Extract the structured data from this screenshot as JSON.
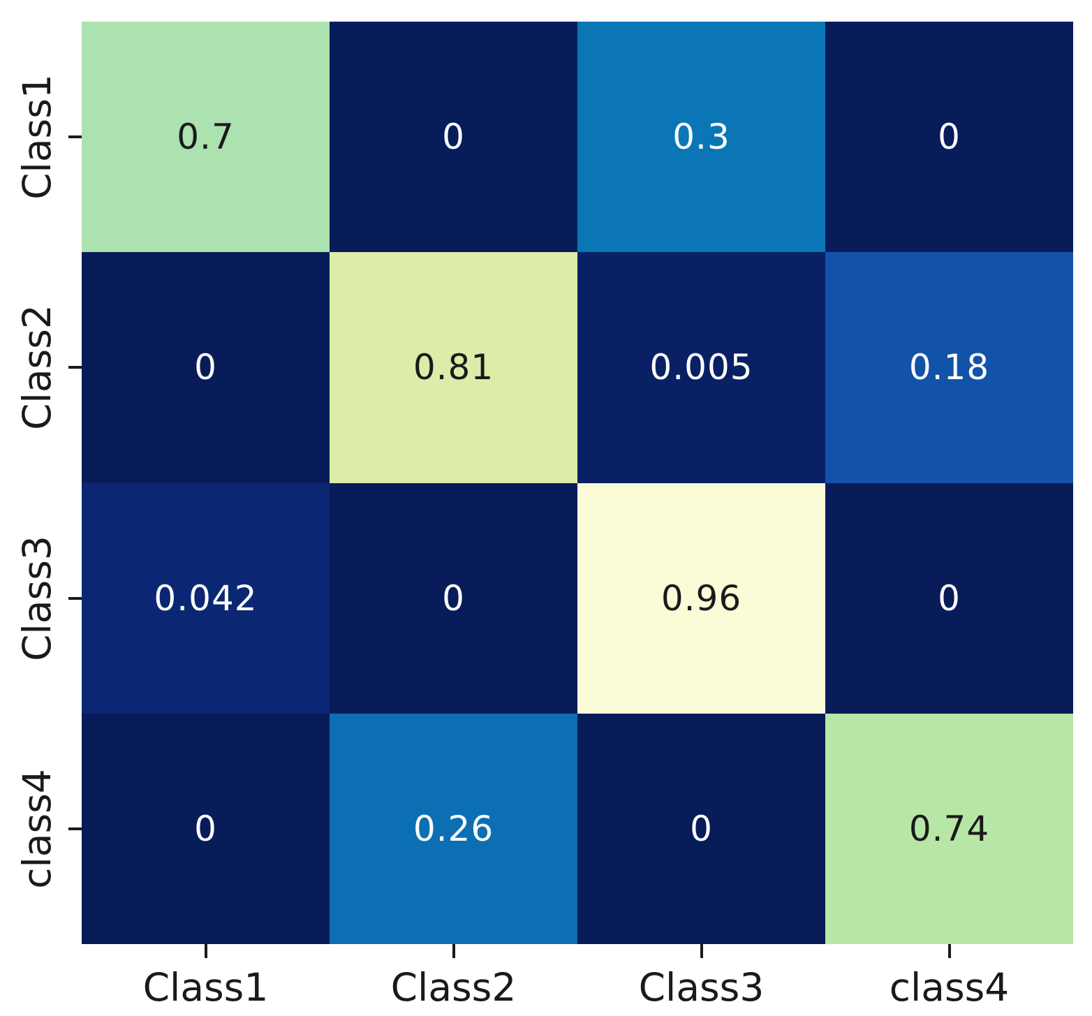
{
  "chart_data": {
    "type": "heatmap",
    "title": "",
    "xlabel": "",
    "ylabel": "",
    "colormap": "YlGnBu_r",
    "value_range": [
      0,
      1
    ],
    "grid": false,
    "legend": "none",
    "x_tick_labels": [
      "Class1",
      "Class2",
      "Class3",
      "class4"
    ],
    "y_tick_labels": [
      "Class1",
      "Class2",
      "Class3",
      "class4"
    ],
    "matrix": [
      [
        0.7,
        0,
        0.3,
        0
      ],
      [
        0,
        0.81,
        0.005,
        0.18
      ],
      [
        0.042,
        0,
        0.96,
        0
      ],
      [
        0,
        0.26,
        0,
        0.74
      ]
    ],
    "cell_labels": [
      [
        "0.7",
        "0",
        "0.3",
        "0"
      ],
      [
        "0",
        "0.81",
        "0.005",
        "0.18"
      ],
      [
        "0.042",
        "0",
        "0.96",
        "0"
      ],
      [
        "0",
        "0.26",
        "0",
        "0.74"
      ]
    ],
    "cell_colors": [
      [
        "#ace1b0",
        "#081c5a",
        "#0b76b5",
        "#081c5a"
      ],
      [
        "#081c5a",
        "#dbeda9",
        "#0a2064",
        "#1252a8"
      ],
      [
        "#0b2672",
        "#081c5a",
        "#fcfbd7",
        "#081c5a"
      ],
      [
        "#081c5a",
        "#0c6fb3",
        "#081c5a",
        "#b8e6a6"
      ]
    ],
    "cell_text_colors": [
      [
        "#1a1a1a",
        "#ffffff",
        "#ffffff",
        "#ffffff"
      ],
      [
        "#ffffff",
        "#1a1a1a",
        "#ffffff",
        "#ffffff"
      ],
      [
        "#ffffff",
        "#ffffff",
        "#1a1a1a",
        "#ffffff"
      ],
      [
        "#ffffff",
        "#ffffff",
        "#ffffff",
        "#1a1a1a"
      ]
    ]
  },
  "colors": {
    "background": "#ffffff",
    "axis_text": "#1a1a1a",
    "tick": "#1a1a1a"
  }
}
